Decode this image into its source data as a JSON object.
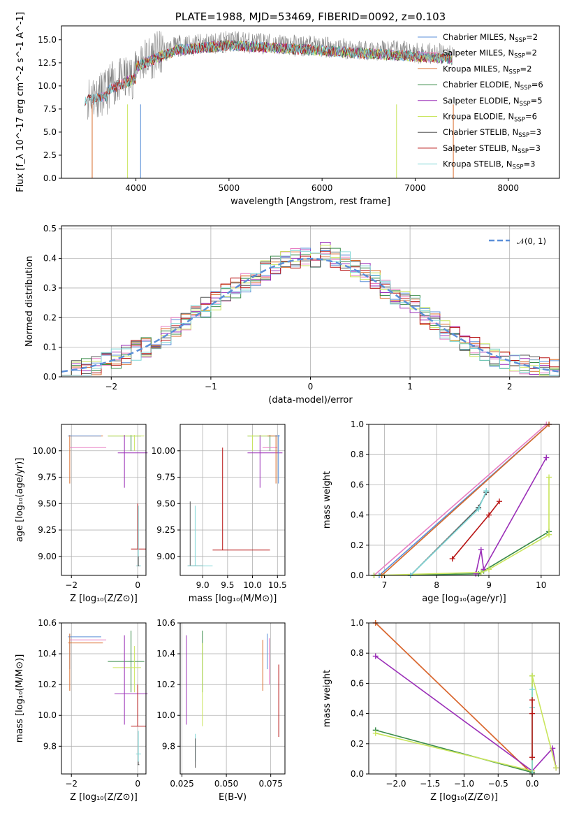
{
  "colors": {
    "chabrier_miles": "#5a8fd8",
    "salpeter_miles": "#e87ec2",
    "kroupa_miles": "#d96b2a",
    "chabrier_elodie": "#3a8c4a",
    "salpeter_elodie": "#9b2fb8",
    "kroupa_elodie": "#c9e55c",
    "chabrier_stelib": "#555555",
    "salpeter_stelib": "#b81414",
    "kroupa_stelib": "#7fd6d6"
  },
  "chart_data": [
    {
      "type": "line",
      "title": "PLATE=1988, MJD=53469, FIBERID=0092, z=0.103",
      "xlabel": "wavelength [Angstrom, rest frame]",
      "ylabel": "Flux [f_λ 10^-17 erg cm^-2 s^-1 A^-1]",
      "xlim": [
        3200,
        8550
      ],
      "ylim": [
        0,
        16.5
      ],
      "xticks": [
        "4000",
        "5000",
        "6000",
        "7000",
        "8000"
      ],
      "yticks": [
        "0.0",
        "2.5",
        "5.0",
        "7.5",
        "10.0",
        "12.5",
        "15.0"
      ],
      "series_note": "spectra span approximately 3450-7400 A, flux ~8-16",
      "legend": [
        {
          "label": "Chabrier MILES, N",
          "sub": "SSP",
          "val": "=2",
          "color": "chabrier_miles"
        },
        {
          "label": "Salpeter MILES, N",
          "sub": "SSP",
          "val": "=2",
          "color": "salpeter_miles"
        },
        {
          "label": "Kroupa MILES, N",
          "sub": "SSP",
          "val": "=2",
          "color": "kroupa_miles"
        },
        {
          "label": "Chabrier ELODIE, N",
          "sub": "SSP",
          "val": "=6",
          "color": "chabrier_elodie"
        },
        {
          "label": "Salpeter ELODIE, N",
          "sub": "SSP",
          "val": "=5",
          "color": "salpeter_elodie"
        },
        {
          "label": "Kroupa ELODIE, N",
          "sub": "SSP",
          "val": "=6",
          "color": "kroupa_elodie"
        },
        {
          "label": "Chabrier STELIB, N",
          "sub": "SSP",
          "val": "=3",
          "color": "chabrier_stelib"
        },
        {
          "label": "Salpeter STELIB, N",
          "sub": "SSP",
          "val": "=3",
          "color": "salpeter_stelib"
        },
        {
          "label": "Kroupa STELIB, N",
          "sub": "SSP",
          "val": "=3",
          "color": "kroupa_stelib"
        }
      ]
    },
    {
      "type": "line",
      "xlabel": "(data-model)/error",
      "ylabel": "Normed distribution",
      "xlim": [
        -2.5,
        2.5
      ],
      "ylim": [
        0,
        0.51
      ],
      "xticks": [
        "−2",
        "−1",
        "0",
        "1",
        "2"
      ],
      "yticks": [
        "0.0",
        "0.1",
        "0.2",
        "0.3",
        "0.4",
        "0.5"
      ],
      "grid": true,
      "legend_label": "𝒩(0, 1)",
      "histogram_bins": 50,
      "histogram_reference": [
        0.02,
        0.025,
        0.03,
        0.04,
        0.05,
        0.06,
        0.075,
        0.09,
        0.1,
        0.115,
        0.14,
        0.17,
        0.19,
        0.21,
        0.235,
        0.26,
        0.28,
        0.3,
        0.32,
        0.34,
        0.36,
        0.38,
        0.39,
        0.4,
        0.41,
        0.4,
        0.42,
        0.4,
        0.39,
        0.37,
        0.35,
        0.33,
        0.3,
        0.28,
        0.26,
        0.24,
        0.21,
        0.19,
        0.16,
        0.14,
        0.12,
        0.1,
        0.09,
        0.07,
        0.06,
        0.05,
        0.04,
        0.035,
        0.03,
        0.025
      ]
    },
    {
      "type": "scatter",
      "xlabel": "Z [log10(Z/Z⊙)]",
      "ylabel": "age  [log10(age/yr)]",
      "xlim": [
        -2.3,
        0.25
      ],
      "ylim": [
        8.82,
        10.25
      ],
      "xticks": [
        "−2",
        "0"
      ],
      "yticks": [
        "9.00",
        "9.25",
        "9.50",
        "9.75",
        "10.00"
      ]
    },
    {
      "type": "scatter",
      "xlabel": "mass [log10(M/M⊙)]",
      "xlim": [
        8.55,
        10.65
      ],
      "ylim": [
        8.82,
        10.25
      ],
      "xticks": [
        "9.0",
        "9.5",
        "10.0",
        "10.5"
      ],
      "yticks": [
        "9.00",
        "9.25",
        "9.50",
        "9.75",
        "10.00"
      ]
    },
    {
      "type": "line",
      "xlabel": "age  [log10(age/yr)]",
      "ylabel": "mass weight",
      "xlim": [
        6.7,
        10.35
      ],
      "ylim": [
        0,
        1.0
      ],
      "xticks": [
        "7",
        "8",
        "9",
        "10"
      ],
      "yticks": [
        "0.0",
        "0.2",
        "0.4",
        "0.6",
        "0.8",
        "1.0"
      ],
      "series": [
        {
          "name": "Chabrier MILES",
          "x": [
            6.9,
            10.15
          ],
          "y": [
            0.0,
            1.0
          ],
          "color": "chabrier_miles"
        },
        {
          "name": "Salpeter MILES",
          "x": [
            6.8,
            10.1
          ],
          "y": [
            0.0,
            1.0
          ],
          "color": "salpeter_miles"
        },
        {
          "name": "Kroupa MILES",
          "x": [
            6.95,
            10.15
          ],
          "y": [
            0.0,
            1.0
          ],
          "color": "kroupa_miles"
        },
        {
          "name": "Chabrier ELODIE",
          "x": [
            6.8,
            8.8,
            8.9,
            10.15
          ],
          "y": [
            0.0,
            0.01,
            0.03,
            0.29
          ],
          "color": "chabrier_elodie"
        },
        {
          "name": "Salpeter ELODIE",
          "x": [
            8.75,
            8.85,
            8.9,
            10.1
          ],
          "y": [
            0.01,
            0.17,
            0.04,
            0.78
          ],
          "color": "salpeter_elodie"
        },
        {
          "name": "Kroupa ELODIE",
          "x": [
            6.8,
            8.85,
            9.0,
            10.15,
            10.15
          ],
          "y": [
            0.0,
            0.02,
            0.04,
            0.27,
            0.65
          ],
          "color": "kroupa_elodie"
        },
        {
          "name": "Chabrier STELIB",
          "x": [
            7.5,
            8.8,
            8.95
          ],
          "y": [
            0.0,
            0.45,
            0.55
          ],
          "color": "chabrier_stelib"
        },
        {
          "name": "Salpeter STELIB",
          "x": [
            8.3,
            9.0,
            9.2
          ],
          "y": [
            0.11,
            0.4,
            0.49
          ],
          "color": "salpeter_stelib"
        },
        {
          "name": "Kroupa STELIB",
          "x": [
            7.5,
            8.8,
            8.95
          ],
          "y": [
            0.0,
            0.44,
            0.56
          ],
          "color": "kroupa_stelib"
        }
      ]
    },
    {
      "type": "scatter",
      "xlabel": "Z [log10(Z/Z⊙)]",
      "ylabel": "mass [log10(M/M⊙)]",
      "xlim": [
        -2.3,
        0.25
      ],
      "ylim": [
        9.62,
        10.6
      ],
      "xticks": [
        "−2",
        "0"
      ],
      "yticks": [
        "9.8",
        "10.0",
        "10.2",
        "10.4",
        "10.6"
      ]
    },
    {
      "type": "scatter",
      "xlabel": "E(B-V)",
      "xlim": [
        0.024,
        0.083
      ],
      "ylim": [
        9.62,
        10.6
      ],
      "xticks": [
        "0.025",
        "0.050",
        "0.075"
      ],
      "yticks": [
        "9.8",
        "10.0",
        "10.2",
        "10.4",
        "10.6"
      ]
    },
    {
      "type": "line",
      "xlabel": "Z [log10(Z/Z⊙)]",
      "ylabel": "mass weight",
      "xlim": [
        -2.4,
        0.4
      ],
      "ylim": [
        0,
        1.0
      ],
      "xticks": [
        "−2.0",
        "−1.5",
        "−1.0",
        "−0.5",
        "0.0"
      ],
      "yticks": [
        "0.0",
        "0.2",
        "0.4",
        "0.6",
        "0.8",
        "1.0"
      ],
      "series": [
        {
          "name": "Salpeter MILES",
          "x": [
            -2.3,
            0.0
          ],
          "y": [
            1.0,
            0.0
          ],
          "color": "salpeter_miles"
        },
        {
          "name": "Kroupa MILES",
          "x": [
            -2.3,
            0.0
          ],
          "y": [
            1.0,
            0.0
          ],
          "color": "kroupa_miles"
        },
        {
          "name": "Salpeter ELODIE",
          "x": [
            -2.3,
            0.0,
            0.3,
            0.35
          ],
          "y": [
            0.78,
            0.02,
            0.17,
            0.04
          ],
          "color": "salpeter_elodie"
        },
        {
          "name": "Chabrier ELODIE",
          "x": [
            -2.3,
            0.0,
            0.0
          ],
          "y": [
            0.29,
            0.01,
            0.65
          ],
          "color": "chabrier_elodie"
        },
        {
          "name": "Kroupa ELODIE",
          "x": [
            -2.3,
            0.0,
            0.0,
            0.35
          ],
          "y": [
            0.27,
            0.02,
            0.65,
            0.04
          ],
          "color": "kroupa_elodie"
        },
        {
          "name": "Kroupa STELIB",
          "x": [
            0.0,
            0.0,
            0.0
          ],
          "y": [
            0.0,
            0.44,
            0.56
          ],
          "color": "kroupa_stelib"
        },
        {
          "name": "Salpeter STELIB",
          "x": [
            0.0,
            0.0,
            0.0
          ],
          "y": [
            0.11,
            0.4,
            0.49
          ],
          "color": "salpeter_stelib"
        }
      ]
    }
  ]
}
